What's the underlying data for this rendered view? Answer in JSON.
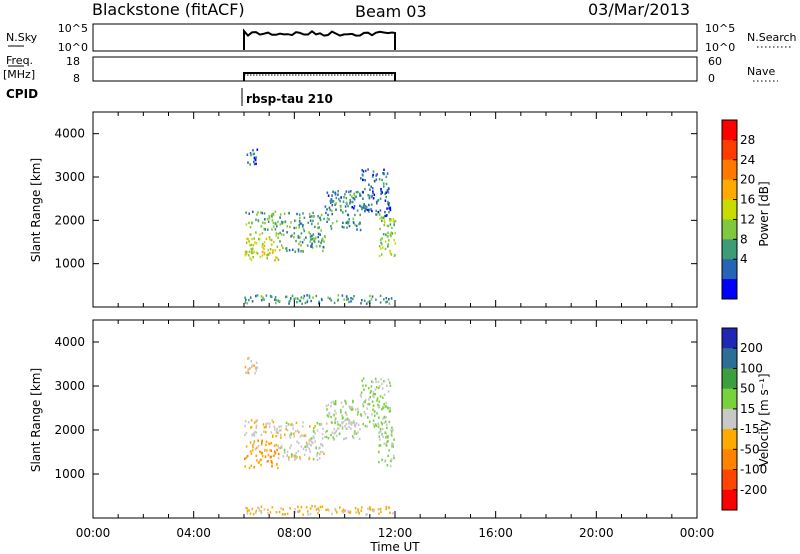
{
  "header": {
    "radar": "Blackstone (fitACF)",
    "beam": "Beam 03",
    "date": "03/Mar/2013"
  },
  "nsky_panel": {
    "left_label": "N.Sky",
    "left_ticks": [
      "10^5",
      "10^0"
    ],
    "right_ticks": [
      "10^5",
      "10^0"
    ],
    "right_label": "N.Search"
  },
  "freq_panel": {
    "left_label_1": "Freq.",
    "left_label_2": "[MHz]",
    "left_ticks": [
      "18",
      "8"
    ],
    "right_ticks": [
      "60",
      "0"
    ],
    "right_label": "Nave"
  },
  "cpid": {
    "label": "CPID",
    "value": "rbsp-tau 210"
  },
  "power_panel": {
    "ylabel": "Slant Range [km]",
    "colorbar_label": "Power [dB]",
    "colorbar_ticks": [
      "28",
      "24",
      "20",
      "16",
      "12",
      "8",
      "4"
    ],
    "colorbar_colors": [
      "#ff0000",
      "#ff3c00",
      "#ff7800",
      "#ffaa00",
      "#c8dc00",
      "#80c83c",
      "#3c9c78",
      "#2864b4",
      "#0000ff"
    ]
  },
  "velocity_panel": {
    "ylabel": "Slant Range [km]",
    "colorbar_label": "Velocity [m s⁻¹]",
    "colorbar_ticks": [
      "200",
      "100",
      "50",
      "15",
      "-15",
      "-50",
      "-100",
      "-200"
    ],
    "colorbar_colors": [
      "#1e28b4",
      "#2d6e96",
      "#3c9e3c",
      "#78d23c",
      "#c8c8c8",
      "#ffaa00",
      "#ff8200",
      "#ff4600",
      "#ff0000"
    ]
  },
  "x_axis": {
    "label": "Time UT",
    "ticks": [
      "00:00",
      "04:00",
      "08:00",
      "12:00",
      "16:00",
      "20:00",
      "00:00"
    ]
  },
  "chart_data": [
    {
      "type": "line",
      "title": "N.Sky / N.Search",
      "x_range_hours": [
        0,
        24
      ],
      "active_interval_hours": [
        6.0,
        12.0
      ],
      "y_scale": "log",
      "ylim": [
        1,
        100000
      ]
    },
    {
      "type": "line",
      "title": "Freq. [MHz] / Nave",
      "x_range_hours": [
        0,
        24
      ],
      "active_interval_hours": [
        6.0,
        12.0
      ],
      "ylim_left": [
        8,
        18
      ],
      "ylim_right": [
        0,
        60
      ]
    },
    {
      "type": "heatmap",
      "title": "Power [dB]",
      "xlabel": "Time UT",
      "ylabel": "Slant Range [km]",
      "xlim_hours": [
        0,
        24
      ],
      "y_ticks_km": [
        1000,
        2000,
        3000,
        4000
      ],
      "clim": [
        0,
        30
      ],
      "regions": [
        {
          "t": [
            6.0,
            7.4
          ],
          "range_km": [
            1100,
            1750
          ],
          "value": 14
        },
        {
          "t": [
            6.0,
            7.4
          ],
          "range_km": [
            1800,
            2250
          ],
          "value": 10
        },
        {
          "t": [
            7.4,
            9.2
          ],
          "range_km": [
            1300,
            2200
          ],
          "value": 9
        },
        {
          "t": [
            9.2,
            10.6
          ],
          "range_km": [
            1800,
            2700
          ],
          "value": 7
        },
        {
          "t": [
            10.6,
            11.8
          ],
          "range_km": [
            2100,
            3200
          ],
          "value": 5
        },
        {
          "t": [
            11.3,
            12.0
          ],
          "range_km": [
            1200,
            2200
          ],
          "value": 12
        },
        {
          "t": [
            6.0,
            6.5
          ],
          "range_km": [
            3300,
            3700
          ],
          "value": 5
        },
        {
          "t": [
            6.0,
            12.0
          ],
          "range_km": [
            100,
            300
          ],
          "value": 8
        }
      ]
    },
    {
      "type": "heatmap",
      "title": "Velocity [m s⁻¹]",
      "xlabel": "Time UT",
      "ylabel": "Slant Range [km]",
      "xlim_hours": [
        0,
        24
      ],
      "y_ticks_km": [
        1000,
        2000,
        3000,
        4000
      ],
      "clim": [
        -250,
        250
      ],
      "regions": [
        {
          "t": [
            6.0,
            7.4
          ],
          "range_km": [
            1150,
            1800
          ],
          "value": -60
        },
        {
          "t": [
            6.0,
            7.4
          ],
          "range_km": [
            1850,
            2250
          ],
          "value": -15
        },
        {
          "t": [
            7.4,
            9.2
          ],
          "range_km": [
            1350,
            2200
          ],
          "value": 0
        },
        {
          "t": [
            9.2,
            10.6
          ],
          "range_km": [
            1800,
            2700
          ],
          "value": 20
        },
        {
          "t": [
            10.6,
            11.8
          ],
          "range_km": [
            2100,
            3200
          ],
          "value": 40
        },
        {
          "t": [
            11.3,
            12.0
          ],
          "range_km": [
            1200,
            2200
          ],
          "value": 30
        },
        {
          "t": [
            6.0,
            6.5
          ],
          "range_km": [
            3300,
            3700
          ],
          "value": -20
        },
        {
          "t": [
            6.0,
            12.0
          ],
          "range_km": [
            100,
            300
          ],
          "value": -40
        }
      ]
    }
  ]
}
